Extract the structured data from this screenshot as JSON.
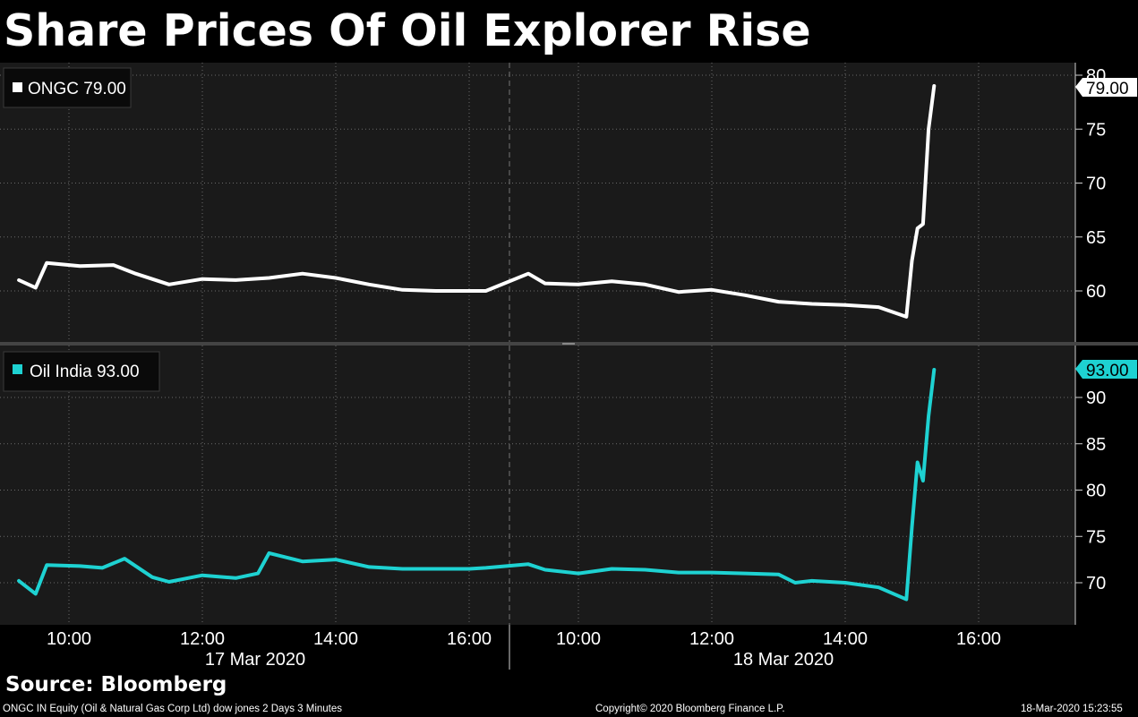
{
  "title": "Share Prices Of Oil Explorer Rise",
  "source": "Source: Bloomberg",
  "footer": {
    "left": "ONGC IN Equity (Oil & Natural Gas Corp Ltd) dow jones 2 Days 3 Minutes",
    "center": "Copyright© 2020 Bloomberg Finance L.P.",
    "right": "18-Mar-2020 15:23:55"
  },
  "colors": {
    "background": "#000000",
    "panel": "#1a1a1a",
    "ongc": "#ffffff",
    "oil_india": "#1ed2d2",
    "grid": "#6a6a6a"
  },
  "chart_data": {
    "type": "line",
    "x_tick_labels": [
      "10:00",
      "12:00",
      "14:00",
      "16:00",
      "10:00",
      "12:00",
      "14:00",
      "16:00"
    ],
    "day_labels": [
      "17 Mar 2020",
      "18 Mar 2020"
    ],
    "grid": true,
    "legend_placement": "top-left",
    "panels": [
      {
        "name": "ONGC",
        "legend": "ONGC 79.00",
        "last_value_label": "79.00",
        "ylim": [
          55,
          80
        ],
        "yticks": [
          "60",
          "65",
          "70",
          "75",
          "80"
        ],
        "series": [
          {
            "name": "ONGC",
            "x": [
              "17 Mar 09:15",
              "17 Mar 09:30",
              "17 Mar 09:40",
              "17 Mar 10:10",
              "17 Mar 10:40",
              "17 Mar 11:00",
              "17 Mar 11:30",
              "17 Mar 12:00",
              "17 Mar 12:30",
              "17 Mar 13:00",
              "17 Mar 13:30",
              "17 Mar 14:00",
              "17 Mar 14:30",
              "17 Mar 15:00",
              "17 Mar 15:30",
              "17 Mar 16:00",
              "17 Mar 16:15",
              "18 Mar 09:15",
              "18 Mar 09:30",
              "18 Mar 10:00",
              "18 Mar 10:30",
              "18 Mar 11:00",
              "18 Mar 11:30",
              "18 Mar 12:00",
              "18 Mar 12:30",
              "18 Mar 13:00",
              "18 Mar 13:30",
              "18 Mar 14:00",
              "18 Mar 14:30",
              "18 Mar 14:55",
              "18 Mar 15:00",
              "18 Mar 15:05",
              "18 Mar 15:10",
              "18 Mar 15:15",
              "18 Mar 15:20"
            ],
            "values": [
              61.0,
              60.3,
              62.6,
              62.3,
              62.4,
              61.6,
              60.6,
              61.1,
              61.0,
              61.2,
              61.6,
              61.2,
              60.6,
              60.1,
              60.0,
              60.0,
              60.0,
              61.6,
              60.7,
              60.6,
              60.9,
              60.6,
              59.9,
              60.1,
              59.6,
              59.0,
              58.8,
              58.7,
              58.5,
              57.6,
              62.8,
              65.8,
              66.2,
              75.0,
              79.0
            ]
          }
        ]
      },
      {
        "name": "Oil India",
        "legend": "Oil India 93.00",
        "last_value_label": "93.00",
        "ylim": [
          66,
          95
        ],
        "yticks": [
          "70",
          "75",
          "80",
          "85",
          "90"
        ],
        "series": [
          {
            "name": "Oil India",
            "x": [
              "17 Mar 09:15",
              "17 Mar 09:30",
              "17 Mar 09:40",
              "17 Mar 10:10",
              "17 Mar 10:30",
              "17 Mar 10:50",
              "17 Mar 11:15",
              "17 Mar 11:30",
              "17 Mar 12:00",
              "17 Mar 12:30",
              "17 Mar 12:50",
              "17 Mar 13:00",
              "17 Mar 13:30",
              "17 Mar 14:00",
              "17 Mar 14:30",
              "17 Mar 15:00",
              "17 Mar 15:30",
              "17 Mar 16:00",
              "17 Mar 16:15",
              "18 Mar 09:15",
              "18 Mar 09:30",
              "18 Mar 10:00",
              "18 Mar 10:30",
              "18 Mar 11:00",
              "18 Mar 11:30",
              "18 Mar 12:00",
              "18 Mar 12:30",
              "18 Mar 13:00",
              "18 Mar 13:15",
              "18 Mar 13:30",
              "18 Mar 14:00",
              "18 Mar 14:30",
              "18 Mar 14:55",
              "18 Mar 15:00",
              "18 Mar 15:05",
              "18 Mar 15:10",
              "18 Mar 15:15",
              "18 Mar 15:20"
            ],
            "values": [
              70.2,
              68.8,
              71.9,
              71.8,
              71.6,
              72.6,
              70.6,
              70.1,
              70.8,
              70.5,
              71.0,
              73.2,
              72.3,
              72.5,
              71.7,
              71.5,
              71.5,
              71.5,
              71.6,
              72.0,
              71.4,
              71.0,
              71.5,
              71.4,
              71.1,
              71.1,
              71.0,
              70.9,
              70.0,
              70.2,
              70.0,
              69.5,
              68.2,
              76.0,
              83.0,
              81.0,
              88.0,
              93.0
            ]
          }
        ]
      }
    ]
  }
}
